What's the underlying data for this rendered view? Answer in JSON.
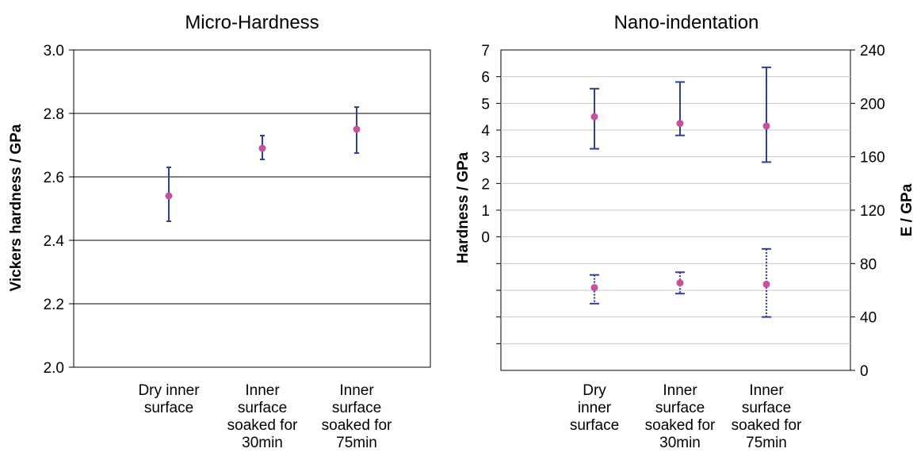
{
  "colors": {
    "errorbar": "#2e3f9e",
    "marker": "#c9509c",
    "gridline": "#000000",
    "nano_gridline": "#c8c8c8",
    "axis": "#000000",
    "text": "#000000"
  },
  "chart_data": [
    {
      "type": "scatter",
      "title": "Micro-Hardness",
      "ylabel": "Vickers hardness / GPa",
      "xlabel": "",
      "categories": [
        [
          "Dry inner",
          "surface"
        ],
        [
          "Inner",
          "surface",
          "soaked for",
          "30min"
        ],
        [
          "Inner",
          "surface",
          "soaked for",
          "75min"
        ]
      ],
      "ylim": [
        2.0,
        3.0
      ],
      "yticks": [
        "2.0",
        "2.2",
        "2.4",
        "2.6",
        "2.8",
        "3.0"
      ],
      "grid": true,
      "series": [
        {
          "values": [
            2.54,
            2.69,
            2.75
          ],
          "error_low": [
            2.46,
            2.655,
            2.675
          ],
          "error_high": [
            2.63,
            2.73,
            2.82
          ]
        }
      ]
    },
    {
      "type": "scatter",
      "title": "Nano-indentation",
      "ylabel": "Hardness / GPa",
      "y2label": "E / GPa",
      "xlabel": "",
      "categories": [
        [
          "Dry",
          "inner",
          "surface"
        ],
        [
          "Inner",
          "surface",
          "soaked for",
          "30min"
        ],
        [
          "Inner",
          "surface",
          "soaked for",
          "75min"
        ]
      ],
      "ylim": [
        -5,
        7
      ],
      "yticks": [
        "0",
        "1",
        "2",
        "3",
        "4",
        "5",
        "6",
        "7"
      ],
      "y2lim": [
        0,
        240
      ],
      "y2ticks": [
        "0",
        "40",
        "80",
        "120",
        "160",
        "200",
        "240"
      ],
      "grid": true,
      "series": [
        {
          "axis": "left",
          "values": [
            4.5,
            4.25,
            4.15
          ],
          "error_low": [
            3.3,
            3.8,
            2.8
          ],
          "error_high": [
            5.55,
            5.8,
            6.35
          ]
        },
        {
          "axis": "right",
          "values": [
            62,
            65.5,
            64.5
          ],
          "error_low": [
            50,
            57.5,
            40
          ],
          "error_high": [
            71.5,
            73.5,
            91
          ]
        }
      ]
    }
  ]
}
